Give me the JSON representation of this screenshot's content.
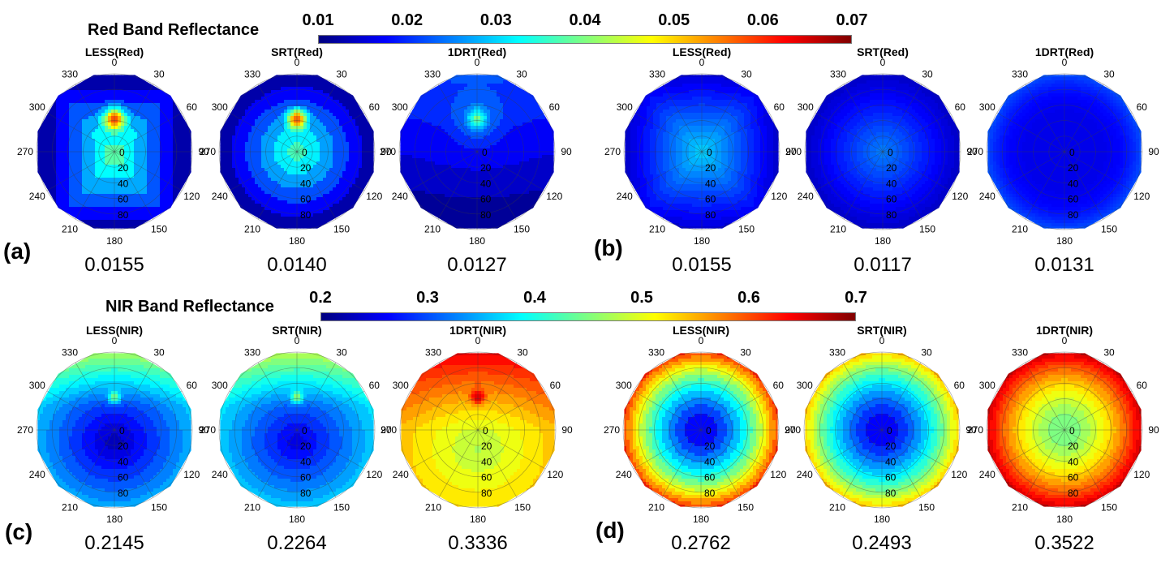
{
  "chart_data": [
    {
      "type": "heatmap",
      "subtype": "polar-contour",
      "group": "red",
      "band_title": "Red Band Reflectance",
      "colorbar": {
        "ticks": [
          "0.01",
          "0.02",
          "0.03",
          "0.04",
          "0.05",
          "0.06",
          "0.07"
        ],
        "range": [
          0.01,
          0.07
        ],
        "colormap": "jet"
      },
      "panels": [
        {
          "label": "(a)",
          "plots": [
            {
              "title": "LESS(Red)",
              "value": "0.0155",
              "pattern": "hotspot-box",
              "min": 0.01,
              "max": 0.07
            },
            {
              "title": "SRT(Red)",
              "value": "0.0140",
              "pattern": "hotspot-round",
              "min": 0.01,
              "max": 0.068
            },
            {
              "title": "1DRT(Red)",
              "value": "0.0127",
              "pattern": "hotspot-weak",
              "min": 0.01,
              "max": 0.044
            }
          ]
        },
        {
          "label": "(b)",
          "plots": [
            {
              "title": "LESS(Red)",
              "value": "0.0155",
              "pattern": "center-bright-box",
              "min": 0.014,
              "max": 0.03
            },
            {
              "title": "SRT(Red)",
              "value": "0.0117",
              "pattern": "center-bright",
              "min": 0.014,
              "max": 0.025
            },
            {
              "title": "1DRT(Red)",
              "value": "0.0131",
              "pattern": "edge-bright-flat",
              "min": 0.016,
              "max": 0.022
            }
          ]
        }
      ]
    },
    {
      "type": "heatmap",
      "subtype": "polar-contour",
      "group": "nir",
      "band_title": "NIR Band Reflectance",
      "colorbar": {
        "ticks": [
          "0.2",
          "0.3",
          "0.4",
          "0.5",
          "0.6",
          "0.7"
        ],
        "range": [
          0.2,
          0.7
        ],
        "colormap": "jet"
      },
      "panels": [
        {
          "label": "(c)",
          "plots": [
            {
              "title": "LESS(NIR)",
              "value": "0.2145",
              "pattern": "bowl-hotspot",
              "min": 0.22,
              "max": 0.45
            },
            {
              "title": "SRT(NIR)",
              "value": "0.2264",
              "pattern": "bowl-hotspot",
              "min": 0.24,
              "max": 0.46
            },
            {
              "title": "1DRT(NIR)",
              "value": "0.3336",
              "pattern": "bowl-hotspot-warm",
              "min": 0.44,
              "max": 0.66
            }
          ]
        },
        {
          "label": "(d)",
          "plots": [
            {
              "title": "LESS(NIR)",
              "value": "0.2762",
              "pattern": "rings",
              "min": 0.25,
              "max": 0.61
            },
            {
              "title": "SRT(NIR)",
              "value": "0.2493",
              "pattern": "rings",
              "min": 0.25,
              "max": 0.54
            },
            {
              "title": "1DRT(NIR)",
              "value": "0.3522",
              "pattern": "rings",
              "min": 0.44,
              "max": 0.66
            }
          ]
        }
      ]
    }
  ],
  "polar_axes": {
    "azimuth_labels": [
      "0",
      "30",
      "60",
      "90",
      "120",
      "150",
      "180",
      "210",
      "240",
      "270",
      "300",
      "330"
    ],
    "zenith_labels": [
      "0",
      "20",
      "40",
      "60",
      "80"
    ]
  }
}
